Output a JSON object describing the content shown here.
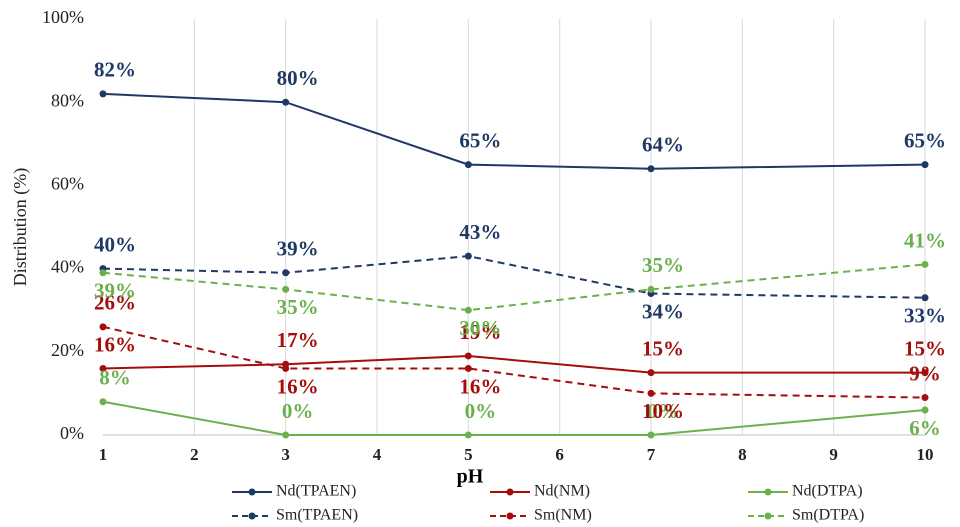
{
  "chart_data": {
    "type": "line",
    "x_label": "pH",
    "y_label": "Distribution (%)",
    "x": [
      1,
      3,
      5,
      7,
      10
    ],
    "xlim": [
      1,
      10
    ],
    "xticks": [
      1,
      2,
      3,
      4,
      5,
      6,
      7,
      8,
      9,
      10
    ],
    "ylim": [
      0,
      100
    ],
    "yticks": [
      {
        "value": 0,
        "label": "0%"
      },
      {
        "value": 20,
        "label": "20%"
      },
      {
        "value": 40,
        "label": "40%"
      },
      {
        "value": 60,
        "label": "60%"
      },
      {
        "value": 80,
        "label": "80%"
      },
      {
        "value": 100,
        "label": "100%"
      }
    ],
    "grid": "x",
    "series": [
      {
        "name": "Nd(TPAEN)",
        "color": "#1f3864",
        "dash": false,
        "values": [
          82,
          80,
          65,
          64,
          65
        ],
        "value_labels": [
          "82%",
          "80%",
          "65%",
          "64%",
          "65%"
        ]
      },
      {
        "name": "Nd(NM)",
        "color": "#a50d0d",
        "dash": false,
        "values": [
          16,
          17,
          19,
          15,
          15
        ],
        "value_labels": [
          "16%",
          "17%",
          "19%",
          "15%",
          "15%"
        ]
      },
      {
        "name": "Nd(DTPA)",
        "color": "#6ab04c",
        "dash": false,
        "values": [
          8,
          0,
          0,
          0,
          6
        ],
        "value_labels": [
          "8%",
          "0%",
          "0%",
          "0%",
          "6%"
        ]
      },
      {
        "name": "Sm(TPAEN)",
        "color": "#1f3864",
        "dash": true,
        "values": [
          40,
          39,
          43,
          34,
          33
        ],
        "value_labels": [
          "40%",
          "39%",
          "43%",
          "34%",
          "33%"
        ]
      },
      {
        "name": "Sm(NM)",
        "color": "#a50d0d",
        "dash": true,
        "values": [
          26,
          16,
          16,
          10,
          9
        ],
        "value_labels": [
          "26%",
          "16%",
          "16%",
          "10%",
          "9%"
        ]
      },
      {
        "name": "Sm(DTPA)",
        "color": "#6ab04c",
        "dash": true,
        "values": [
          39,
          35,
          30,
          35,
          41
        ],
        "value_labels": [
          "39%",
          "35%",
          "30%",
          "35%",
          "41%"
        ]
      }
    ]
  }
}
